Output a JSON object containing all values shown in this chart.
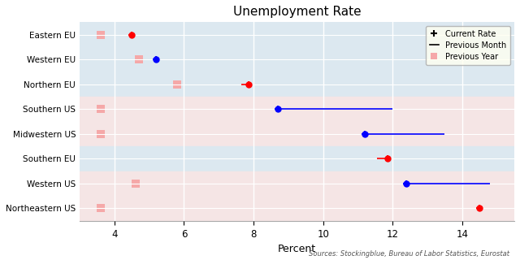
{
  "title": "Unemployment Rate",
  "xlabel": "Percent",
  "source": "Sources: Stockingblue, Bureau of Labor Statistics, Eurostat",
  "categories": [
    "Eastern EU",
    "Western EU",
    "Northern EU",
    "Southern US",
    "Midwestern US",
    "Southern EU",
    "Western US",
    "Northeastern US"
  ],
  "current_rate": [
    4.5,
    5.2,
    7.85,
    8.7,
    11.2,
    11.85,
    12.4,
    14.5
  ],
  "current_color": [
    "red",
    "blue",
    "red",
    "blue",
    "blue",
    "red",
    "blue",
    "red"
  ],
  "previous_month_start": [
    4.5,
    null,
    7.65,
    8.7,
    11.2,
    11.55,
    12.4,
    null
  ],
  "previous_month_end": [
    null,
    null,
    7.85,
    12.0,
    13.5,
    11.85,
    14.8,
    null
  ],
  "previous_month_color": [
    "red",
    null,
    "red",
    "blue",
    "blue",
    "red",
    "blue",
    null
  ],
  "previous_year": [
    3.6,
    4.7,
    5.8,
    3.6,
    3.6,
    null,
    4.6,
    3.6
  ],
  "xlim": [
    3.0,
    15.5
  ],
  "xticks": [
    4,
    6,
    8,
    10,
    12,
    14
  ],
  "bg_eu": "#dce8f0",
  "bg_us": "#f5e5e5",
  "prev_year_color": "#f5a8a8",
  "legend_bg": "#fffff0"
}
